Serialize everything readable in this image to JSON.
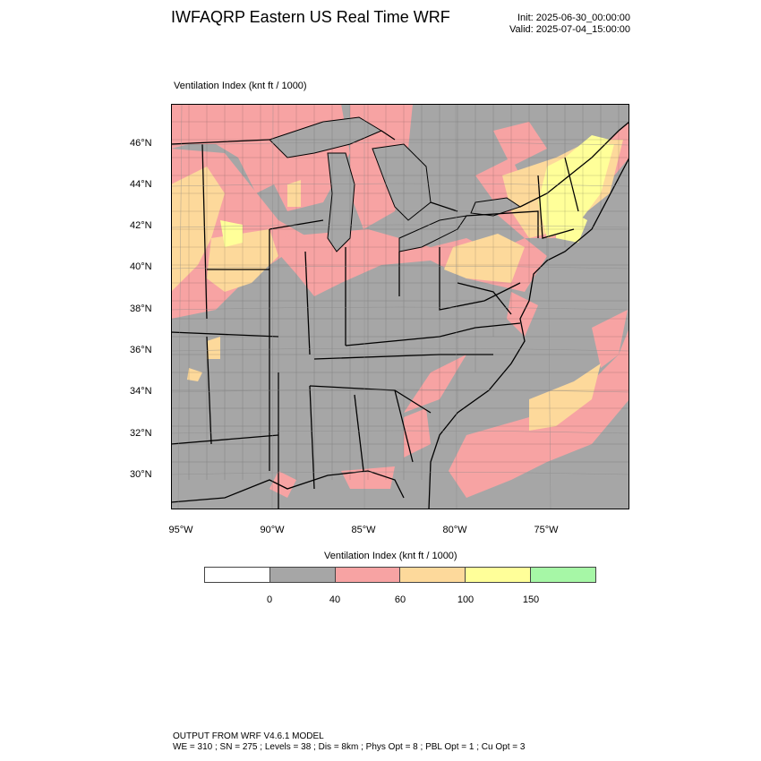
{
  "header": {
    "title": "IWFAQRP Eastern US Real Time WRF",
    "init": "Init: 2025-06-30_00:00:00",
    "valid": "Valid: 2025-07-04_15:00:00"
  },
  "panel": {
    "label": "Ventilation Index   (knt ft / 1000)"
  },
  "map": {
    "lat_ticks": [
      "46°N",
      "44°N",
      "42°N",
      "40°N",
      "38°N",
      "36°N",
      "34°N",
      "32°N",
      "30°N"
    ],
    "lon_ticks": [
      "95°W",
      "90°W",
      "85°W",
      "80°W",
      "75°W"
    ]
  },
  "legend": {
    "title": "Ventilation Index  (knt ft / 1000)",
    "labels": [
      "0",
      "40",
      "60",
      "100",
      "150"
    ],
    "colors": [
      "#ffffff",
      "#a6a6a6",
      "#f7a3a3",
      "#fdd99b",
      "#ffff99",
      "#a6f7a6"
    ]
  },
  "footer": {
    "line1": "OUTPUT FROM WRF V4.6.1 MODEL",
    "line2": "WE = 310 ; SN = 275 ; Levels = 38 ; Dis = 8km ; Phys Opt = 8 ; PBL Opt = 1 ; Cu Opt = 3"
  }
}
